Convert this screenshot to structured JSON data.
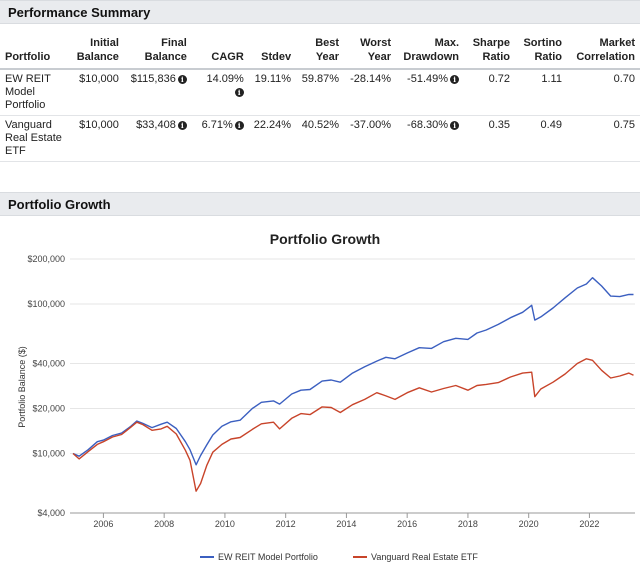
{
  "summary": {
    "title": "Performance Summary",
    "columns": [
      "Portfolio",
      "Initial Balance",
      "Final Balance",
      "CAGR",
      "Stdev",
      "Best Year",
      "Worst Year",
      "Max. Drawdown",
      "Sharpe Ratio",
      "Sortino Ratio",
      "Market Correlation"
    ],
    "rows": [
      {
        "portfolio": "EW REIT Model Portfolio",
        "initial": "$10,000",
        "final": "$115,836",
        "cagr": "14.09%",
        "stdev": "19.11%",
        "best": "59.87%",
        "worst": "-28.14%",
        "maxdd": "-51.49%",
        "sharpe": "0.72",
        "sortino": "1.11",
        "corr": "0.70"
      },
      {
        "portfolio": "Vanguard Real Estate ETF",
        "initial": "$10,000",
        "final": "$33,408",
        "cagr": "6.71%",
        "stdev": "22.24%",
        "best": "40.52%",
        "worst": "-37.00%",
        "maxdd": "-68.30%",
        "sharpe": "0.35",
        "sortino": "0.49",
        "corr": "0.75"
      }
    ]
  },
  "growth_section_title": "Portfolio Growth",
  "chart_data": {
    "type": "line",
    "title": "Portfolio Growth",
    "xlabel": "",
    "ylabel": "Portfolio Balance ($)",
    "yscale": "log",
    "ylim": [
      4000,
      200000
    ],
    "xlim": [
      2004.9,
      2023.5
    ],
    "yticks": [
      4000,
      10000,
      20000,
      40000,
      100000,
      200000
    ],
    "ytick_labels": [
      "$4,000",
      "$10,000",
      "$20,000",
      "$40,000",
      "$100,000",
      "$200,000"
    ],
    "xticks": [
      2006,
      2008,
      2010,
      2012,
      2014,
      2016,
      2018,
      2020,
      2022
    ],
    "xtick_labels": [
      "2006",
      "2008",
      "2010",
      "2012",
      "2014",
      "2016",
      "2018",
      "2020",
      "2022"
    ],
    "legend_position": "bottom-center",
    "series": [
      {
        "name": "EW REIT Model Portfolio",
        "color": "#3b5fc0",
        "x": [
          2005.0,
          2005.2,
          2005.5,
          2005.8,
          2006.0,
          2006.3,
          2006.6,
          2006.9,
          2007.1,
          2007.3,
          2007.6,
          2007.9,
          2008.1,
          2008.4,
          2008.7,
          2008.85,
          2009.05,
          2009.2,
          2009.4,
          2009.6,
          2009.9,
          2010.2,
          2010.5,
          2010.9,
          2011.2,
          2011.6,
          2011.8,
          2012.2,
          2012.5,
          2012.8,
          2013.2,
          2013.5,
          2013.8,
          2014.2,
          2014.6,
          2015.0,
          2015.3,
          2015.6,
          2016.0,
          2016.4,
          2016.8,
          2017.2,
          2017.6,
          2018.0,
          2018.3,
          2018.6,
          2019.0,
          2019.4,
          2019.8,
          2020.1,
          2020.2,
          2020.4,
          2020.8,
          2021.2,
          2021.6,
          2021.9,
          2022.1,
          2022.4,
          2022.7,
          2023.0,
          2023.3,
          2023.45
        ],
        "values": [
          10000,
          9600,
          10600,
          12000,
          12300,
          13200,
          13700,
          15200,
          16500,
          15900,
          14900,
          15700,
          16200,
          14700,
          12000,
          10600,
          8400,
          9700,
          11400,
          13300,
          15200,
          16300,
          16700,
          20000,
          22000,
          22500,
          21400,
          25000,
          26500,
          26800,
          30500,
          31000,
          30000,
          34500,
          38000,
          41500,
          44000,
          43000,
          47000,
          51000,
          50500,
          56000,
          59000,
          58000,
          64000,
          67000,
          73000,
          81000,
          88000,
          98000,
          78000,
          82000,
          94000,
          110000,
          128000,
          136000,
          150000,
          132000,
          113000,
          112000,
          116000,
          115836
        ]
      },
      {
        "name": "Vanguard Real Estate ETF",
        "color": "#c8442a",
        "x": [
          2005.0,
          2005.2,
          2005.5,
          2005.8,
          2006.0,
          2006.3,
          2006.6,
          2006.9,
          2007.1,
          2007.3,
          2007.6,
          2007.9,
          2008.1,
          2008.4,
          2008.7,
          2008.85,
          2009.05,
          2009.2,
          2009.4,
          2009.6,
          2009.9,
          2010.2,
          2010.5,
          2010.9,
          2011.2,
          2011.6,
          2011.8,
          2012.2,
          2012.5,
          2012.8,
          2013.2,
          2013.5,
          2013.8,
          2014.2,
          2014.6,
          2015.0,
          2015.3,
          2015.6,
          2016.0,
          2016.4,
          2016.8,
          2017.2,
          2017.6,
          2018.0,
          2018.3,
          2018.6,
          2019.0,
          2019.4,
          2019.8,
          2020.1,
          2020.2,
          2020.4,
          2020.8,
          2021.2,
          2021.6,
          2021.9,
          2022.1,
          2022.4,
          2022.7,
          2023.0,
          2023.3,
          2023.45
        ],
        "values": [
          10000,
          9200,
          10300,
          11500,
          12000,
          12900,
          13400,
          15000,
          16200,
          15600,
          14300,
          14600,
          15200,
          13500,
          10500,
          9000,
          5600,
          6300,
          8300,
          10200,
          11500,
          12500,
          12800,
          14500,
          15800,
          16200,
          14600,
          17200,
          18500,
          18200,
          20500,
          20300,
          18800,
          21200,
          23000,
          25500,
          24300,
          23000,
          25500,
          27500,
          25800,
          27200,
          28500,
          26500,
          28500,
          29000,
          29800,
          32500,
          34500,
          35000,
          24000,
          27000,
          30000,
          34000,
          40000,
          43000,
          42000,
          36000,
          32000,
          33000,
          34500,
          33408
        ]
      }
    ]
  }
}
